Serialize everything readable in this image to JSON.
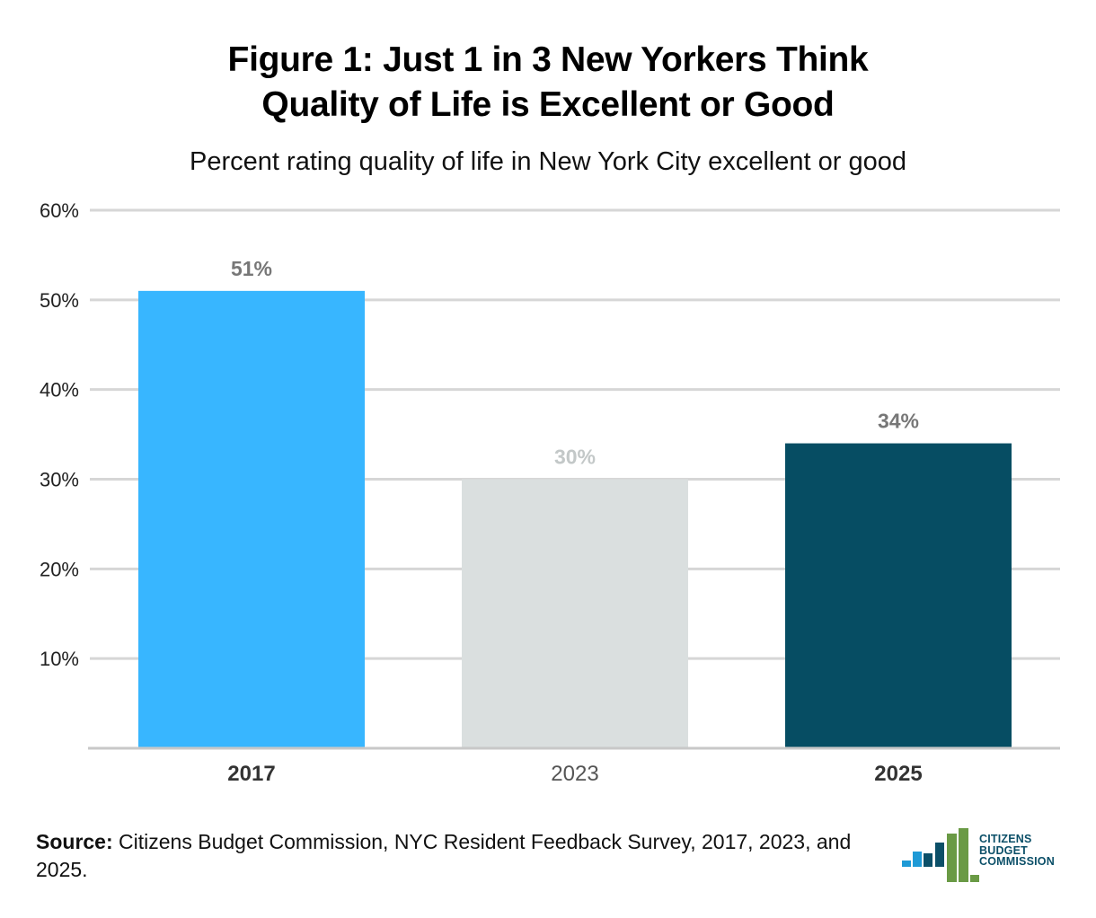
{
  "title": {
    "line1": "Figure 1: Just 1 in 3 New Yorkers Think",
    "line2": "Quality of Life is Excellent or Good"
  },
  "subtitle": "Percent rating quality of life in New York City excellent or good",
  "chart_data": {
    "type": "bar",
    "title": "Figure 1: Just 1 in 3 New Yorkers Think Quality of Life is Excellent or Good",
    "subtitle": "Percent rating quality of life in New York City excellent or good",
    "xlabel": "",
    "ylabel": "",
    "categories": [
      "2017",
      "2023",
      "2025"
    ],
    "values": [
      51,
      30,
      34
    ],
    "data_labels": [
      "51%",
      "30%",
      "34%"
    ],
    "bar_colors": [
      "#38b6ff",
      "#dadfdf",
      "#064d63"
    ],
    "label_colors": [
      "#777777",
      "#c3c8c8",
      "#777777"
    ],
    "category_bold": [
      true,
      false,
      true
    ],
    "category_colors": [
      "#333333",
      "#555555",
      "#333333"
    ],
    "ylim": [
      0,
      60
    ],
    "yticks": [
      10,
      20,
      30,
      40,
      50,
      60
    ],
    "ytick_labels": [
      "10%",
      "20%",
      "30%",
      "40%",
      "50%",
      "60%"
    ],
    "grid": true,
    "gridline_color": "#d6d6d6"
  },
  "source": {
    "label": "Source:",
    "text": "Citizens Budget Commission, NYC Resident Feedback Survey, 2017, 2023, and 2025."
  },
  "logo": {
    "line1": "CITIZENS",
    "line2": "BUDGET",
    "line3": "COMMISSION"
  },
  "colors": {
    "logo_blue": "#1e9ad6",
    "logo_navy": "#0b4f68",
    "logo_green": "#6a9a45"
  }
}
